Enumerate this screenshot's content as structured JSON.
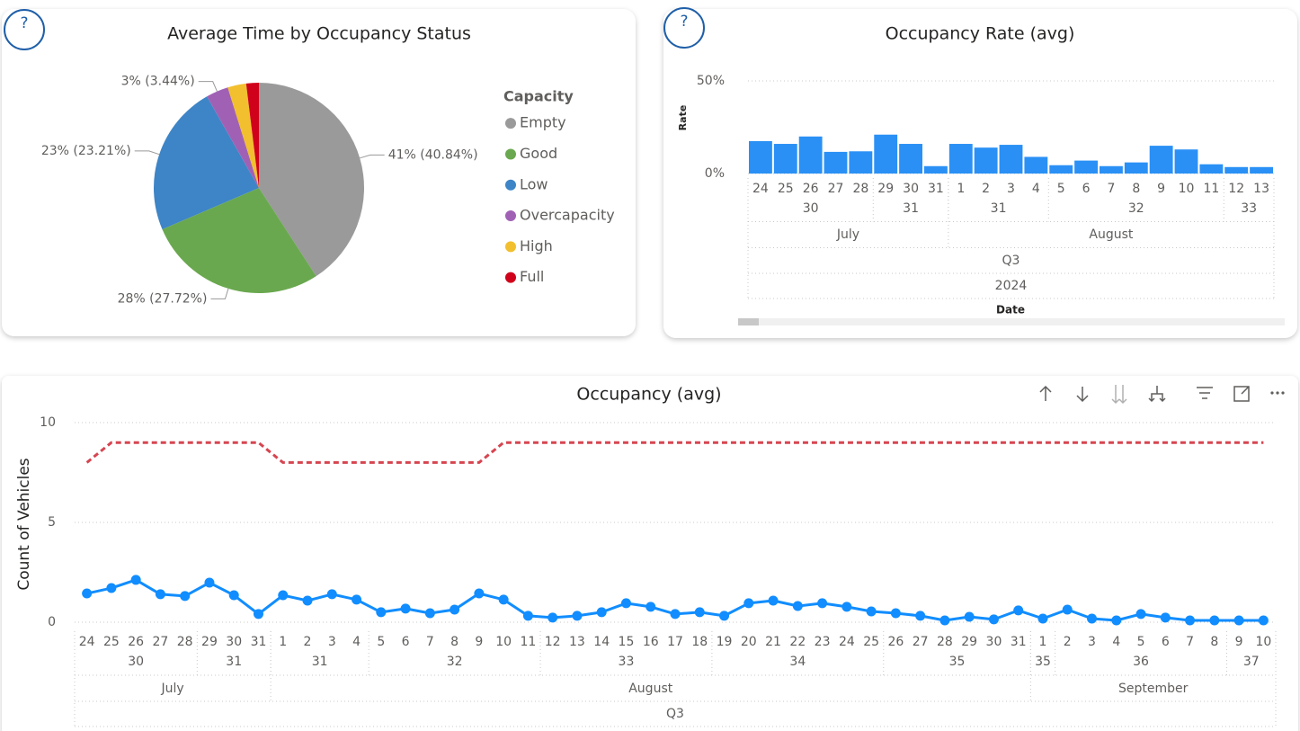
{
  "help_button": "?",
  "chart_data": [
    {
      "type": "pie",
      "title": "Average Time by Occupancy Status",
      "legend_title": "Capacity",
      "categories": [
        "Empty",
        "Good",
        "Low",
        "Overcapacity",
        "High",
        "Full"
      ],
      "values": [
        40.84,
        27.72,
        23.21,
        3.44,
        2.85,
        1.94
      ],
      "value_labels": [
        "41% (40.84%)",
        "28% (27.72%)",
        "23% (23.21%)",
        "3% (3.44%)",
        null,
        null
      ],
      "colors": [
        "#9a9a9a",
        "#6aa84f",
        "#3d85c6",
        "#a061b5",
        "#f2bf2f",
        "#d0021b"
      ]
    },
    {
      "type": "bar",
      "title": "Occupancy Rate (avg)",
      "y_label": "Rate",
      "x_label": "Date",
      "categories": [
        24,
        25,
        26,
        27,
        28,
        29,
        30,
        31,
        1,
        2,
        3,
        4,
        5,
        6,
        7,
        8,
        9,
        10,
        11,
        12,
        13
      ],
      "weeks": [
        30,
        30,
        30,
        30,
        30,
        31,
        31,
        31,
        31,
        31,
        31,
        31,
        32,
        32,
        32,
        32,
        32,
        32,
        32,
        33,
        33
      ],
      "months": [
        "July",
        "July",
        "July",
        "July",
        "July",
        "July",
        "July",
        "July",
        "August",
        "August",
        "August",
        "August",
        "August",
        "August",
        "August",
        "August",
        "August",
        "August",
        "August",
        "August",
        "August"
      ],
      "quarters": [
        "Q3",
        "Q3",
        "Q3",
        "Q3",
        "Q3",
        "Q3",
        "Q3",
        "Q3",
        "Q3",
        "Q3",
        "Q3",
        "Q3",
        "Q3",
        "Q3",
        "Q3",
        "Q3",
        "Q3",
        "Q3",
        "Q3",
        "Q3",
        "Q3"
      ],
      "years": [
        2024,
        2024,
        2024,
        2024,
        2024,
        2024,
        2024,
        2024,
        2024,
        2024,
        2024,
        2024,
        2024,
        2024,
        2024,
        2024,
        2024,
        2024,
        2024,
        2024,
        2024
      ],
      "values": [
        17.5,
        16,
        20,
        11.7,
        12,
        21,
        16,
        4,
        16,
        14,
        15.5,
        9,
        4.5,
        7,
        4,
        6,
        15,
        13,
        5,
        3.5,
        3.5
      ],
      "color": "#2a90f5",
      "ylim": [
        0,
        50
      ],
      "yticks": [
        {
          "value": 0,
          "label": "0%"
        },
        {
          "value": 50,
          "label": "50%"
        }
      ],
      "grid": true
    },
    {
      "type": "line",
      "title": "Occupancy (avg)",
      "y_label": "Count of Vehicles",
      "categories": [
        24,
        25,
        26,
        27,
        28,
        29,
        30,
        31,
        1,
        2,
        3,
        4,
        5,
        6,
        7,
        8,
        9,
        10,
        11,
        12,
        13,
        14,
        15,
        16,
        17,
        18,
        19,
        20,
        21,
        22,
        23,
        24,
        25,
        26,
        27,
        28,
        29,
        30,
        31,
        1,
        2,
        3,
        4,
        5,
        6,
        7,
        8,
        9,
        10
      ],
      "weeks": [
        30,
        30,
        30,
        30,
        30,
        31,
        31,
        31,
        31,
        31,
        31,
        31,
        32,
        32,
        32,
        32,
        32,
        32,
        32,
        33,
        33,
        33,
        33,
        33,
        33,
        33,
        34,
        34,
        34,
        34,
        34,
        34,
        34,
        35,
        35,
        35,
        35,
        35,
        35,
        35,
        36,
        36,
        36,
        36,
        36,
        36,
        36,
        37,
        37
      ],
      "months": [
        "July",
        "July",
        "July",
        "July",
        "July",
        "July",
        "July",
        "July",
        "August",
        "August",
        "August",
        "August",
        "August",
        "August",
        "August",
        "August",
        "August",
        "August",
        "August",
        "August",
        "August",
        "August",
        "August",
        "August",
        "August",
        "August",
        "August",
        "August",
        "August",
        "August",
        "August",
        "August",
        "August",
        "August",
        "August",
        "August",
        "August",
        "August",
        "August",
        "September",
        "September",
        "September",
        "September",
        "September",
        "September",
        "September",
        "September",
        "September",
        "September"
      ],
      "quarters": [
        "Q3",
        "Q3",
        "Q3",
        "Q3",
        "Q3",
        "Q3",
        "Q3",
        "Q3",
        "Q3",
        "Q3",
        "Q3",
        "Q3",
        "Q3",
        "Q3",
        "Q3",
        "Q3",
        "Q3",
        "Q3",
        "Q3",
        "Q3",
        "Q3",
        "Q3",
        "Q3",
        "Q3",
        "Q3",
        "Q3",
        "Q3",
        "Q3",
        "Q3",
        "Q3",
        "Q3",
        "Q3",
        "Q3",
        "Q3",
        "Q3",
        "Q3",
        "Q3",
        "Q3",
        "Q3",
        "Q3",
        "Q3",
        "Q3",
        "Q3",
        "Q3",
        "Q3",
        "Q3",
        "Q3",
        "Q3",
        "Q3"
      ],
      "series": [
        {
          "color": "#118dff",
          "markers": true,
          "values": [
            1.44,
            1.71,
            2.12,
            1.4,
            1.31,
            1.98,
            1.35,
            0.41,
            1.35,
            1.08,
            1.4,
            1.13,
            0.5,
            0.68,
            0.45,
            0.63,
            1.44,
            1.13,
            0.32,
            0.23,
            0.32,
            0.5,
            0.95,
            0.77,
            0.41,
            0.5,
            0.32,
            0.95,
            1.08,
            0.81,
            0.95,
            0.77,
            0.54,
            0.45,
            0.32,
            0.09,
            0.27,
            0.14,
            0.59,
            0.18,
            0.63,
            0.18,
            0.09,
            0.41,
            0.23,
            0.09,
            0.09,
            0.09,
            0.09
          ]
        },
        {
          "color": "#d64550",
          "dashed": true,
          "values": [
            8,
            9,
            9,
            9,
            9,
            9,
            9,
            9,
            8,
            8,
            8,
            8,
            8,
            8,
            8,
            8,
            8,
            9,
            9,
            9,
            9,
            9,
            9,
            9,
            9,
            9,
            9,
            9,
            9,
            9,
            9,
            9,
            9,
            9,
            9,
            9,
            9,
            9,
            9,
            9,
            9,
            9,
            9,
            9,
            9,
            9,
            9,
            9,
            9
          ]
        }
      ],
      "ylim": [
        0,
        10
      ],
      "yticks": [
        0,
        5,
        10
      ],
      "grid": true
    }
  ]
}
